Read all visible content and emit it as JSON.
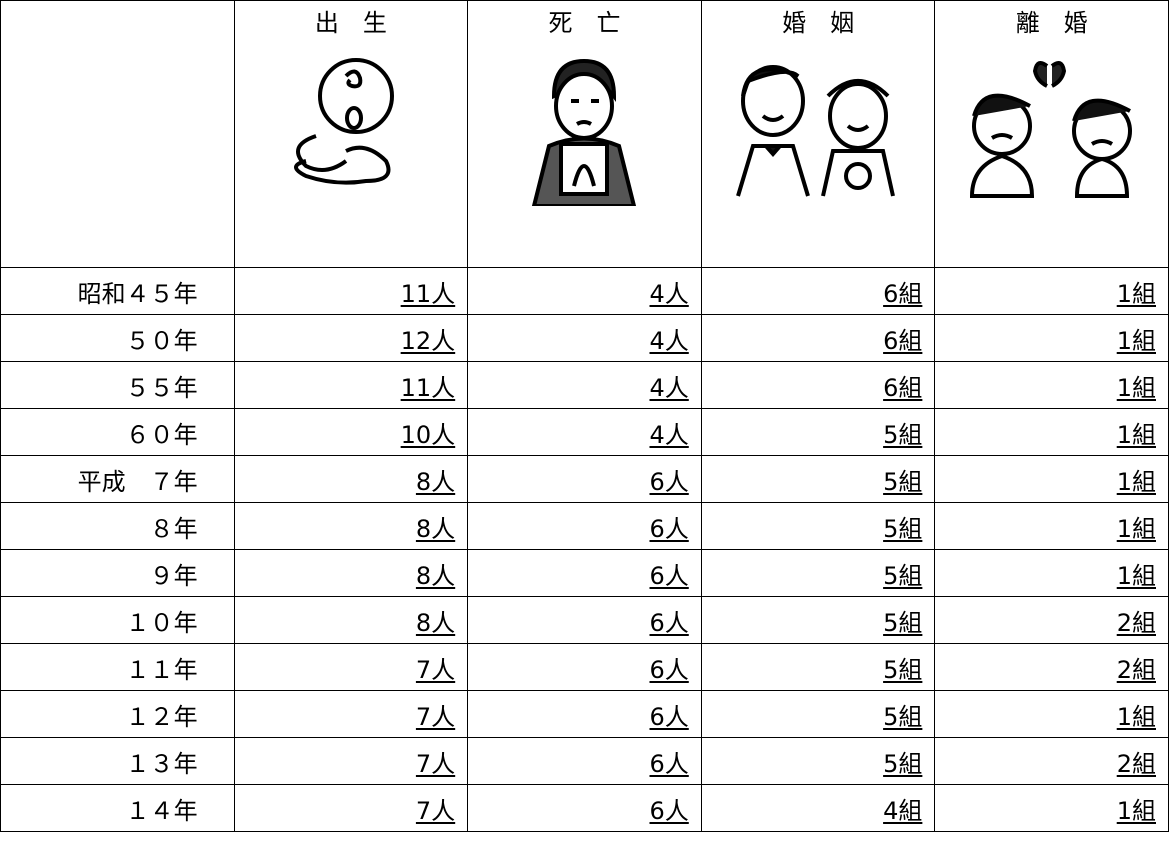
{
  "header": {
    "columns": [
      "出　生",
      "死　亡",
      "婚　姻",
      "離　婚"
    ]
  },
  "table": {
    "rows": [
      [
        "昭和４５年",
        "11人",
        "4人",
        "6組",
        "1組"
      ],
      [
        "５０年",
        "12人",
        "4人",
        "6組",
        "1組"
      ],
      [
        "５５年",
        "11人",
        "4人",
        "6組",
        "1組"
      ],
      [
        "６０年",
        "10人",
        "4人",
        "5組",
        "1組"
      ],
      [
        "平成　７年",
        "8人",
        "6人",
        "5組",
        "1組"
      ],
      [
        "８年",
        "8人",
        "6人",
        "5組",
        "1組"
      ],
      [
        "９年",
        "8人",
        "6人",
        "5組",
        "1組"
      ],
      [
        "１０年",
        "8人",
        "6人",
        "5組",
        "2組"
      ],
      [
        "１１年",
        "7人",
        "6人",
        "5組",
        "2組"
      ],
      [
        "１２年",
        "7人",
        "6人",
        "5組",
        "1組"
      ],
      [
        "１３年",
        "7人",
        "6人",
        "5組",
        "2組"
      ],
      [
        "１４年",
        "7人",
        "6人",
        "4組",
        "1組"
      ]
    ]
  }
}
